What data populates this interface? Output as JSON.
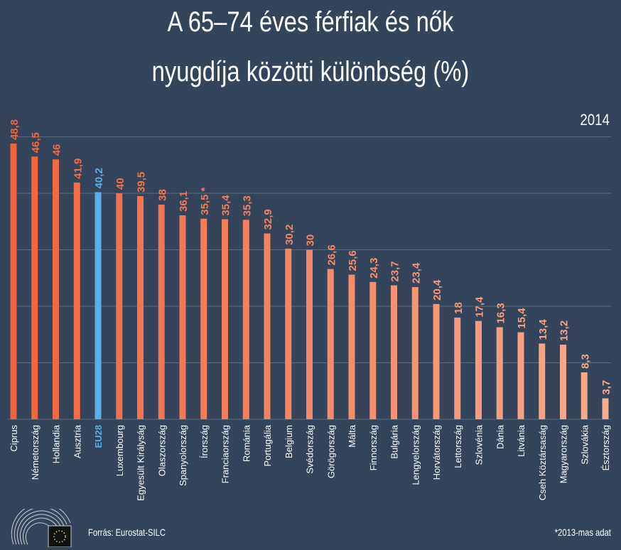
{
  "title_line1": "A 65–74 éves férfiak és nők",
  "title_line2": "nyugdíja közötti különbség (%)",
  "year": "2014",
  "source": "Forrás: Eurostat-SILC",
  "footnote": "*2013-mas adat",
  "colors": {
    "background": "#34445a",
    "bar_start": "#f2653c",
    "bar_end": "#f7ab8f",
    "highlight": "#5aaee6",
    "grid": "#5b6b80"
  },
  "chart_data": {
    "type": "bar",
    "title": "A 65–74 éves férfiak és nők nyugdíja közötti különbség (%)",
    "categories": [
      "Ciprus",
      "Németország",
      "Hollandia",
      "Ausztria",
      "EU28",
      "Luxembourg",
      "Egyesült Királyság",
      "Olaszország",
      "Spanyolország",
      "Írország",
      "Franciaország",
      "Románia",
      "Portugália",
      "Belgium",
      "Svédország",
      "Görögország",
      "Málta",
      "Finnország",
      "Bulgária",
      "Lengyelország",
      "Horvátország",
      "Lettország",
      "Szlovénia",
      "Dánia",
      "Litvánia",
      "Cseh Köztársaság",
      "Magyarország",
      "Szlovákia",
      "Észtország"
    ],
    "values": [
      48.8,
      46.5,
      46,
      41.9,
      40.2,
      40,
      39.5,
      38,
      36.1,
      35.5,
      35.4,
      35.3,
      32.9,
      30.2,
      30,
      26.6,
      25.6,
      24.3,
      23.7,
      23.4,
      20.4,
      18,
      17.4,
      16.3,
      15.4,
      13.4,
      13.2,
      8.3,
      3.7
    ],
    "value_labels": [
      "48,8",
      "46,5",
      "46",
      "41,9",
      "40,2",
      "40",
      "39,5",
      "38",
      "36,1",
      "35,5 *",
      "35,4",
      "35,3",
      "32,9",
      "30,2",
      "30",
      "26,6",
      "25,6",
      "24,3",
      "23,7",
      "23,4",
      "20,4",
      "18",
      "17,4",
      "16,3",
      "15,4",
      "13,4",
      "13,2",
      "8,3",
      "3,7"
    ],
    "highlight": "EU28",
    "ylim": [
      0,
      50
    ],
    "grid": true,
    "ytick_labels_shown": false
  }
}
